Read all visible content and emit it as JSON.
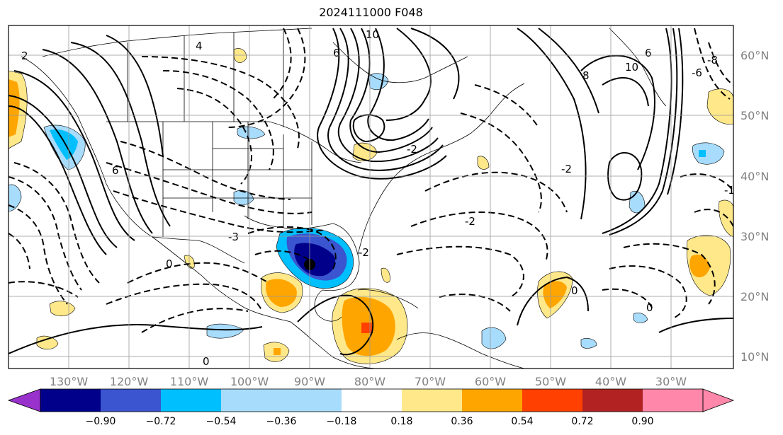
{
  "title": "2024111000 F048",
  "map": {
    "lon_labels": [
      "130°W",
      "120°W",
      "110°W",
      "100°W",
      "90°W",
      "80°W",
      "70°W",
      "60°W",
      "50°W",
      "40°W",
      "30°W"
    ],
    "lat_labels": [
      "60°N",
      "50°N",
      "40°N",
      "30°N",
      "20°N",
      "10°N"
    ],
    "contour_labels": [
      "10",
      "6",
      "4",
      "2",
      "-2",
      "0",
      "-3",
      "6",
      "8",
      "10",
      "6",
      "-6",
      "-8",
      "-2",
      "0",
      "-2",
      "0",
      "-1",
      "0",
      "-2"
    ]
  },
  "colorbar": {
    "ticks": [
      "−0.90",
      "−0.72",
      "−0.54",
      "−0.36",
      "−0.18",
      "0.18",
      "0.36",
      "0.54",
      "0.72",
      "0.90"
    ],
    "colors": [
      "#9932cc",
      "#00008b",
      "#3a55cf",
      "#00bfff",
      "#a8dcfc",
      "#ffffff",
      "#ffe88a",
      "#ffa500",
      "#ff4000",
      "#b22222",
      "#ff88aa"
    ]
  }
}
